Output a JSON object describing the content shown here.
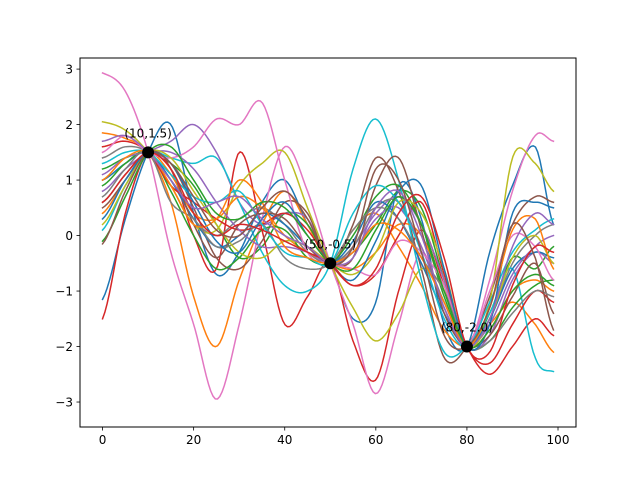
{
  "chart_data": {
    "type": "line",
    "title": "",
    "xlabel": "",
    "ylabel": "",
    "xlim": [
      -4.95,
      103.95
    ],
    "ylim": [
      -3.45,
      3.2
    ],
    "xticks": [
      0,
      20,
      40,
      60,
      80,
      100
    ],
    "yticks": [
      -3,
      -2,
      -1,
      0,
      1,
      2,
      3
    ],
    "grid": false,
    "legend": "none",
    "x_range": [
      0,
      99
    ],
    "series_sample_x": [
      0,
      5,
      10,
      15,
      20,
      25,
      30,
      35,
      40,
      45,
      50,
      55,
      60,
      65,
      70,
      75,
      80,
      85,
      90,
      95,
      99
    ],
    "series": [
      {
        "color": "#1f77b4",
        "y": [
          -1.15,
          0.3,
          1.5,
          2.0,
          0.4,
          -0.7,
          -0.3,
          0.6,
          1.0,
          0.2,
          -0.5,
          -1.5,
          -1.2,
          0.9,
          0.3,
          -1.6,
          -2.0,
          -0.3,
          0.9,
          1.6,
          0.2
        ]
      },
      {
        "color": "#ff7f0e",
        "y": [
          1.85,
          1.75,
          1.5,
          0.6,
          -1.1,
          -2.0,
          -0.8,
          0.2,
          0.8,
          0.2,
          -0.5,
          0.1,
          0.4,
          -0.2,
          -0.9,
          -1.7,
          -2.0,
          -1.6,
          -1.2,
          -1.6,
          -2.1
        ]
      },
      {
        "color": "#2ca02c",
        "y": [
          1.2,
          1.4,
          1.5,
          1.3,
          0.9,
          0.2,
          -0.4,
          -0.2,
          0.4,
          0.2,
          -0.5,
          -0.3,
          0.2,
          0.8,
          0.5,
          -0.8,
          -2.0,
          -1.4,
          -0.4,
          -0.6,
          -0.2
        ]
      },
      {
        "color": "#d62728",
        "y": [
          -1.5,
          0.4,
          1.5,
          1.2,
          0.0,
          -0.6,
          1.5,
          0.1,
          -1.6,
          -1.1,
          -0.5,
          -1.9,
          -2.6,
          -1.0,
          0.1,
          -0.9,
          -2.0,
          -2.5,
          -2.0,
          -1.5,
          -1.8
        ]
      },
      {
        "color": "#9467bd",
        "y": [
          0.8,
          1.2,
          1.5,
          1.7,
          2.0,
          1.5,
          0.6,
          0.2,
          0.4,
          0.3,
          -0.5,
          -0.2,
          0.4,
          0.7,
          0.2,
          -0.8,
          -2.0,
          -1.8,
          -0.8,
          -0.3,
          -0.5
        ]
      },
      {
        "color": "#8c564b",
        "y": [
          0.6,
          1.1,
          1.5,
          1.3,
          0.5,
          -0.4,
          -0.6,
          -0.1,
          0.6,
          0.4,
          -0.5,
          0.2,
          1.4,
          0.8,
          -0.6,
          -2.2,
          -2.0,
          -1.1,
          0.2,
          0.7,
          0.6
        ]
      },
      {
        "color": "#e377c2",
        "y": [
          2.93,
          2.6,
          1.5,
          -0.3,
          -1.6,
          -2.95,
          -1.6,
          0.3,
          1.6,
          0.8,
          -0.5,
          -1.6,
          -2.85,
          -1.6,
          -0.3,
          -1.3,
          -2.0,
          -0.8,
          0.8,
          1.8,
          1.7
        ]
      },
      {
        "color": "#7f7f7f",
        "y": [
          1.4,
          1.6,
          1.5,
          1.0,
          0.3,
          0.0,
          0.3,
          0.5,
          0.2,
          -0.3,
          -0.5,
          -0.2,
          0.5,
          0.6,
          -0.2,
          -1.2,
          -2.0,
          -1.5,
          -0.5,
          0.0,
          0.2
        ]
      },
      {
        "color": "#bcbd22",
        "y": [
          2.05,
          1.9,
          1.5,
          0.9,
          0.2,
          0.1,
          0.9,
          1.3,
          1.5,
          0.5,
          -0.5,
          -1.3,
          -1.9,
          -1.4,
          -0.6,
          -1.0,
          -2.0,
          -1.2,
          1.4,
          1.3,
          0.8
        ]
      },
      {
        "color": "#17becf",
        "y": [
          0.1,
          0.9,
          1.5,
          1.4,
          1.3,
          1.4,
          0.6,
          -0.3,
          -0.9,
          -1.0,
          -0.5,
          1.2,
          2.1,
          1.0,
          -0.8,
          -2.1,
          -2.0,
          -1.4,
          -0.6,
          -2.2,
          -2.45
        ]
      },
      {
        "color": "#1f77b4",
        "y": [
          1.0,
          1.3,
          1.5,
          1.0,
          0.3,
          -0.2,
          0.0,
          0.4,
          0.2,
          -0.2,
          -0.5,
          -0.1,
          0.6,
          0.3,
          -0.5,
          -1.4,
          -2.0,
          -1.5,
          -0.6,
          -0.3,
          -0.4
        ]
      },
      {
        "color": "#ff7f0e",
        "y": [
          0.4,
          1.0,
          1.5,
          1.1,
          0.4,
          0.3,
          0.7,
          0.5,
          0.0,
          -0.3,
          -0.5,
          -0.6,
          -0.3,
          0.2,
          0.0,
          -1.0,
          -2.0,
          -1.7,
          -1.0,
          -0.8,
          -1.0
        ]
      },
      {
        "color": "#2ca02c",
        "y": [
          0.9,
          1.3,
          1.5,
          0.8,
          0.0,
          -0.6,
          -0.4,
          0.1,
          0.1,
          -0.4,
          -0.5,
          0.0,
          0.7,
          0.9,
          0.2,
          -1.1,
          -2.0,
          -1.9,
          -1.3,
          -0.9,
          -0.8
        ]
      },
      {
        "color": "#d62728",
        "y": [
          1.6,
          1.7,
          1.5,
          0.9,
          0.6,
          0.3,
          0.1,
          0.2,
          0.4,
          0.1,
          -0.5,
          -0.9,
          -0.7,
          0.0,
          0.6,
          -0.7,
          -2.0,
          -2.3,
          -1.6,
          -1.0,
          -1.2
        ]
      },
      {
        "color": "#9467bd",
        "y": [
          1.1,
          1.4,
          1.5,
          1.5,
          1.2,
          0.6,
          0.1,
          -0.2,
          -0.2,
          -0.3,
          -0.5,
          -0.3,
          0.3,
          0.5,
          -0.2,
          -1.3,
          -2.0,
          -1.6,
          -0.7,
          -0.2,
          0.0
        ]
      },
      {
        "color": "#8c564b",
        "y": [
          0.5,
          1.0,
          1.5,
          1.2,
          0.2,
          -0.4,
          0.2,
          0.4,
          0.3,
          -0.2,
          -0.5,
          -0.4,
          0.9,
          1.4,
          0.1,
          -1.4,
          -2.0,
          -1.8,
          -1.1,
          -0.5,
          -1.4
        ]
      },
      {
        "color": "#e377c2",
        "y": [
          1.5,
          1.8,
          1.5,
          1.4,
          1.6,
          2.1,
          2.0,
          2.4,
          1.0,
          -0.3,
          -0.5,
          -0.6,
          -0.7,
          -0.1,
          -0.3,
          -0.9,
          -2.0,
          -1.0,
          0.0,
          -0.2,
          -0.8
        ]
      },
      {
        "color": "#7f7f7f",
        "y": [
          0.7,
          1.2,
          1.5,
          0.6,
          0.3,
          -0.2,
          -0.1,
          0.2,
          -0.4,
          -0.6,
          -0.5,
          0.1,
          0.5,
          0.3,
          -0.4,
          -1.0,
          -2.0,
          -1.9,
          -1.4,
          -1.0,
          -1.1
        ]
      },
      {
        "color": "#bcbd22",
        "y": [
          0.2,
          0.9,
          1.5,
          1.4,
          0.8,
          0.2,
          -0.3,
          -0.4,
          -0.1,
          -0.2,
          -0.5,
          -0.7,
          -0.3,
          0.6,
          0.4,
          -0.6,
          -2.0,
          -1.5,
          -0.4,
          0.0,
          -0.5
        ]
      },
      {
        "color": "#17becf",
        "y": [
          1.3,
          1.5,
          1.5,
          1.1,
          0.7,
          0.6,
          0.8,
          0.2,
          -0.3,
          -0.4,
          -0.5,
          0.4,
          0.9,
          0.6,
          -0.3,
          -1.5,
          -2.0,
          -1.2,
          -0.3,
          0.1,
          0.3
        ]
      },
      {
        "color": "#1f77b4",
        "y": [
          0.3,
          1.0,
          1.5,
          1.3,
          0.6,
          -0.1,
          -0.3,
          0.3,
          0.6,
          0.0,
          -0.5,
          -0.8,
          -0.1,
          0.8,
          0.9,
          -0.6,
          -2.0,
          -1.6,
          0.4,
          0.6,
          0.5
        ]
      },
      {
        "color": "#ff7f0e",
        "y": [
          1.0,
          1.4,
          1.5,
          0.9,
          0.2,
          0.3,
          1.0,
          0.6,
          -0.2,
          -0.4,
          -0.5,
          -0.3,
          0.2,
          0.1,
          -0.4,
          -1.2,
          -2.0,
          -1.3,
          0.1,
          0.3,
          -0.6
        ]
      },
      {
        "color": "#2ca02c",
        "y": [
          -0.1,
          0.7,
          1.5,
          1.6,
          1.0,
          0.4,
          0.3,
          0.6,
          0.5,
          0.0,
          -0.5,
          -0.6,
          0.1,
          0.7,
          0.2,
          -1.0,
          -2.0,
          -1.7,
          -1.0,
          -0.7,
          -0.9
        ]
      },
      {
        "color": "#d62728",
        "y": [
          0.6,
          1.1,
          1.5,
          1.2,
          0.4,
          0.0,
          0.2,
          0.1,
          -0.1,
          -0.3,
          -0.5,
          -0.9,
          -0.6,
          0.4,
          0.7,
          -0.4,
          -2.0,
          -2.1,
          -0.9,
          -0.2,
          -0.3
        ]
      },
      {
        "color": "#9467bd",
        "y": [
          1.7,
          1.8,
          1.5,
          1.0,
          0.5,
          0.6,
          0.7,
          0.3,
          0.0,
          -0.2,
          -0.5,
          -0.4,
          0.5,
          0.8,
          0.0,
          -1.3,
          -2.0,
          -1.5,
          -0.2,
          0.4,
          0.2
        ]
      },
      {
        "color": "#8c564b",
        "y": [
          -0.15,
          0.8,
          1.5,
          1.3,
          0.7,
          0.1,
          0.0,
          0.5,
          0.8,
          0.3,
          -0.5,
          -0.2,
          1.2,
          1.0,
          -0.3,
          -1.8,
          -2.0,
          -1.3,
          0.2,
          -0.4,
          -1.7
        ]
      }
    ],
    "points": [
      {
        "x": 10,
        "y": 1.5,
        "label": "(10,1.5)"
      },
      {
        "x": 50,
        "y": -0.5,
        "label": "(50,-0.5)"
      },
      {
        "x": 80,
        "y": -2.0,
        "label": "(80,-2.0)"
      }
    ],
    "point_color": "#000000",
    "axes_color": "#000000"
  }
}
